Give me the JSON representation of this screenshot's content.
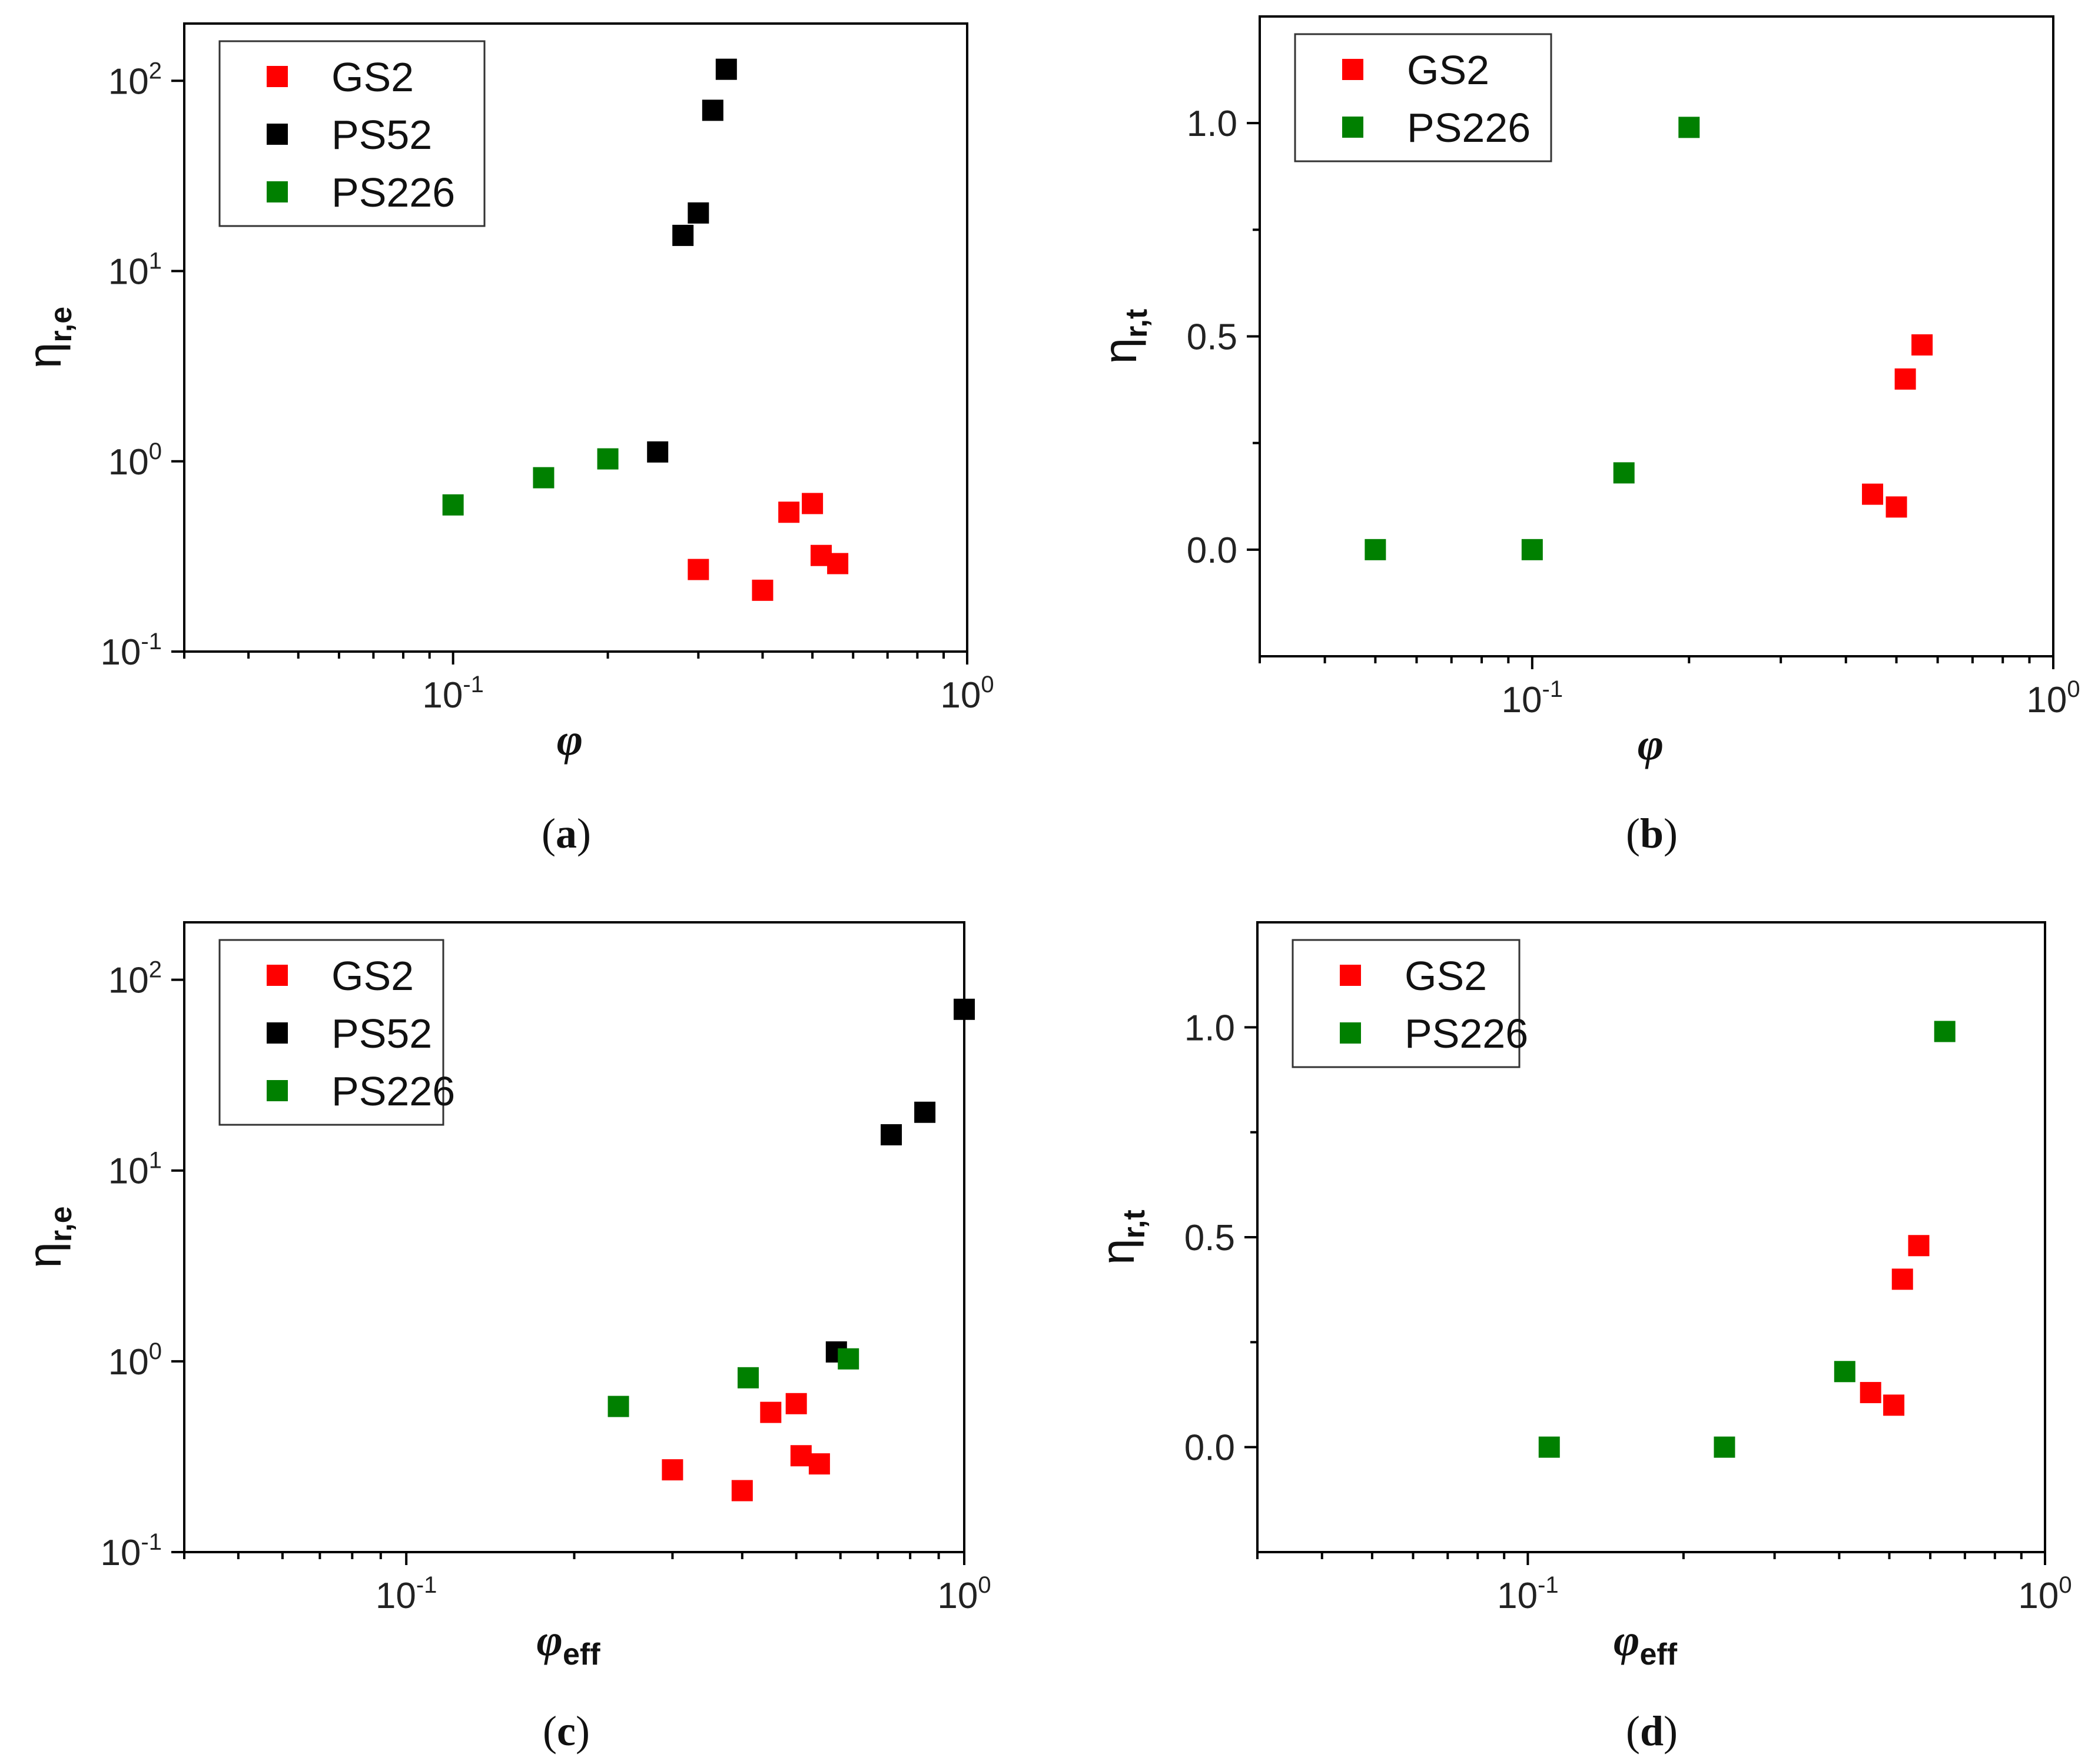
{
  "colors": {
    "GS2": "#ff0000",
    "PS52": "#000000",
    "PS226": "#008000"
  },
  "chart_data": [
    {
      "id": "a",
      "type": "scatter",
      "caption": "a",
      "xscale": "log",
      "yscale": "log",
      "xlim": [
        0.03,
        1.0
      ],
      "ylim": [
        0.1,
        200
      ],
      "xticks": [
        {
          "base": "10",
          "exp": "-1"
        },
        {
          "base": "10",
          "exp": "0"
        }
      ],
      "yticks": [
        {
          "base": "10",
          "exp": "-1"
        },
        {
          "base": "10",
          "exp": "0"
        },
        {
          "base": "10",
          "exp": "1"
        },
        {
          "base": "10",
          "exp": "2"
        }
      ],
      "xlabel": {
        "main": "φ",
        "sub": ""
      },
      "ylabel": {
        "main": "η",
        "sub": "r,e"
      },
      "legend_position": "top-left",
      "series": [
        {
          "name": "GS2",
          "color": "#ff0000",
          "points": [
            [
              0.3,
              0.27
            ],
            [
              0.4,
              0.21
            ],
            [
              0.45,
              0.54
            ],
            [
              0.5,
              0.6
            ],
            [
              0.52,
              0.32
            ],
            [
              0.56,
              0.29
            ]
          ]
        },
        {
          "name": "PS52",
          "color": "#000000",
          "points": [
            [
              0.25,
              1.12
            ],
            [
              0.28,
              15.4
            ],
            [
              0.3,
              20.2
            ],
            [
              0.32,
              70
            ],
            [
              0.34,
              115
            ]
          ]
        },
        {
          "name": "PS226",
          "color": "#008000",
          "points": [
            [
              0.1,
              0.59
            ],
            [
              0.15,
              0.82
            ],
            [
              0.2,
              1.03
            ]
          ]
        }
      ]
    },
    {
      "id": "b",
      "type": "scatter",
      "caption": "b",
      "xscale": "log",
      "yscale": "linear",
      "xlim": [
        0.03,
        1.0
      ],
      "ylim": [
        -0.25,
        1.25
      ],
      "xticks": [
        {
          "base": "10",
          "exp": "-1"
        },
        {
          "base": "10",
          "exp": "0"
        }
      ],
      "yticks": [
        {
          "label": "0.0",
          "v": 0
        },
        {
          "label": "0.5",
          "v": 0.5
        },
        {
          "label": "1.0",
          "v": 1.0
        }
      ],
      "xlabel": {
        "main": "φ",
        "sub": ""
      },
      "ylabel": {
        "main": "η",
        "sub": "r,t"
      },
      "legend_position": "top-left",
      "series": [
        {
          "name": "GS2",
          "color": "#ff0000",
          "points": [
            [
              0.45,
              0.13
            ],
            [
              0.5,
              0.1
            ],
            [
              0.52,
              0.4
            ],
            [
              0.56,
              0.48
            ]
          ]
        },
        {
          "name": "PS226",
          "color": "#008000",
          "points": [
            [
              0.05,
              0.0
            ],
            [
              0.1,
              0.0
            ],
            [
              0.15,
              0.18
            ],
            [
              0.2,
              0.99
            ]
          ]
        }
      ]
    },
    {
      "id": "c",
      "type": "scatter",
      "caption": "c",
      "xscale": "log",
      "yscale": "log",
      "xlim": [
        0.04,
        1.0
      ],
      "ylim": [
        0.1,
        200
      ],
      "xticks": [
        {
          "base": "10",
          "exp": "-1"
        },
        {
          "base": "10",
          "exp": "0"
        }
      ],
      "yticks": [
        {
          "base": "10",
          "exp": "-1"
        },
        {
          "base": "10",
          "exp": "0"
        },
        {
          "base": "10",
          "exp": "1"
        },
        {
          "base": "10",
          "exp": "2"
        }
      ],
      "xlabel": {
        "main": "φ",
        "sub": "eff"
      },
      "ylabel": {
        "main": "η",
        "sub": "r,e"
      },
      "legend_position": "top-left",
      "series": [
        {
          "name": "GS2",
          "color": "#ff0000",
          "points": [
            [
              0.3,
              0.27
            ],
            [
              0.4,
              0.21
            ],
            [
              0.45,
              0.54
            ],
            [
              0.5,
              0.6
            ],
            [
              0.51,
              0.32
            ],
            [
              0.55,
              0.29
            ]
          ]
        },
        {
          "name": "PS52",
          "color": "#000000",
          "points": [
            [
              0.59,
              1.12
            ],
            [
              0.74,
              15.4
            ],
            [
              0.85,
              20.2
            ],
            [
              1.0,
              70
            ]
          ]
        },
        {
          "name": "PS226",
          "color": "#008000",
          "points": [
            [
              0.24,
              0.58
            ],
            [
              0.41,
              0.82
            ],
            [
              0.62,
              1.03
            ]
          ]
        }
      ]
    },
    {
      "id": "d",
      "type": "scatter",
      "caption": "d",
      "xscale": "log",
      "yscale": "linear",
      "xlim": [
        0.03,
        1.0
      ],
      "ylim": [
        -0.25,
        1.25
      ],
      "xticks": [
        {
          "base": "10",
          "exp": "-1"
        },
        {
          "base": "10",
          "exp": "0"
        }
      ],
      "yticks": [
        {
          "label": "0.0",
          "v": 0
        },
        {
          "label": "0.5",
          "v": 0.5
        },
        {
          "label": "1.0",
          "v": 1.0
        }
      ],
      "xlabel": {
        "main": "φ",
        "sub": "eff"
      },
      "ylabel": {
        "main": "η",
        "sub": "r,t"
      },
      "legend_position": "top-left",
      "series": [
        {
          "name": "GS2",
          "color": "#ff0000",
          "points": [
            [
              0.46,
              0.13
            ],
            [
              0.51,
              0.1
            ],
            [
              0.53,
              0.4
            ],
            [
              0.57,
              0.48
            ]
          ]
        },
        {
          "name": "PS226",
          "color": "#008000",
          "points": [
            [
              0.11,
              0.0
            ],
            [
              0.24,
              0.0
            ],
            [
              0.41,
              0.18
            ],
            [
              0.64,
              0.99
            ]
          ]
        }
      ]
    }
  ]
}
